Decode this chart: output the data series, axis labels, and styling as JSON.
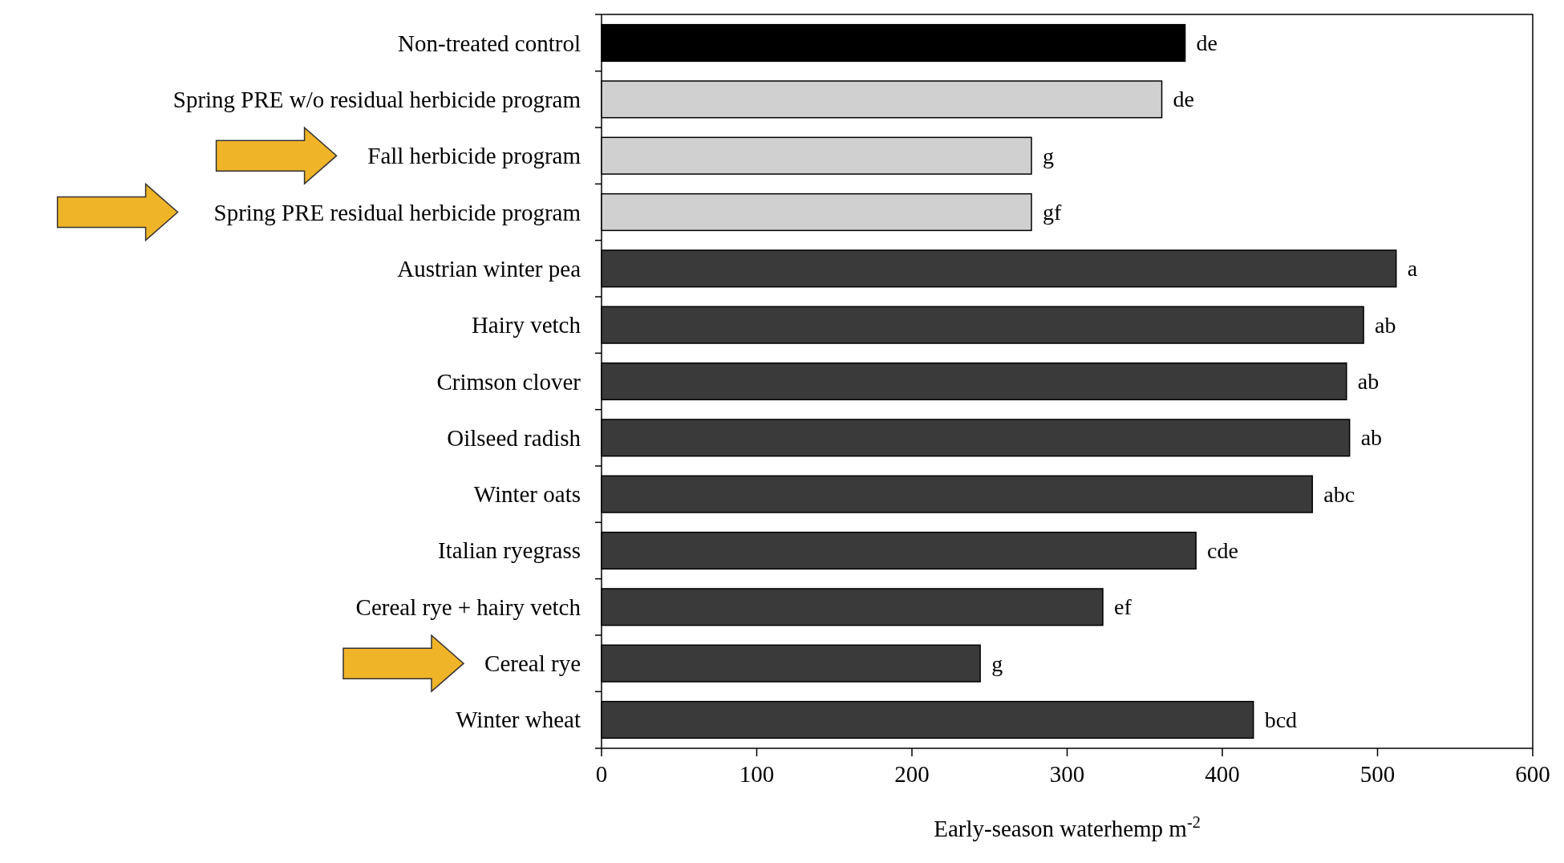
{
  "chart_data": {
    "type": "bar",
    "orientation": "horizontal",
    "xlabel": "Early-season waterhemp m$^{-2}$",
    "categories": [
      "Non-treated control",
      "Spring PRE w/o residual herbicide program",
      "Fall herbicide program",
      "Spring PRE residual herbicide program",
      "Austrian winter pea",
      "Hairy vetch",
      "Crimson clover",
      "Oilseed radish",
      "Winter oats",
      "Italian ryegrass",
      "Cereal rye + hairy vetch",
      "Cereal rye",
      "Winter wheat"
    ],
    "values": [
      376,
      361,
      277,
      277,
      512,
      491,
      480,
      482,
      458,
      383,
      323,
      244,
      420
    ],
    "colors": [
      "#000000",
      "#d0d0d0",
      "#d0d0d0",
      "#d0d0d0",
      "#3a3a3a",
      "#3a3a3a",
      "#3a3a3a",
      "#3a3a3a",
      "#3a3a3a",
      "#3a3a3a",
      "#3a3a3a",
      "#3a3a3a",
      "#3a3a3a"
    ],
    "value_labels": [
      "de",
      "de",
      "g",
      "gf",
      "a",
      "ab",
      "ab",
      "ab",
      "abc",
      "cde",
      "ef",
      "g",
      "bcd"
    ],
    "xlim": [
      0,
      600
    ],
    "xticks": [
      0,
      100,
      200,
      300,
      400,
      500,
      600
    ]
  }
}
